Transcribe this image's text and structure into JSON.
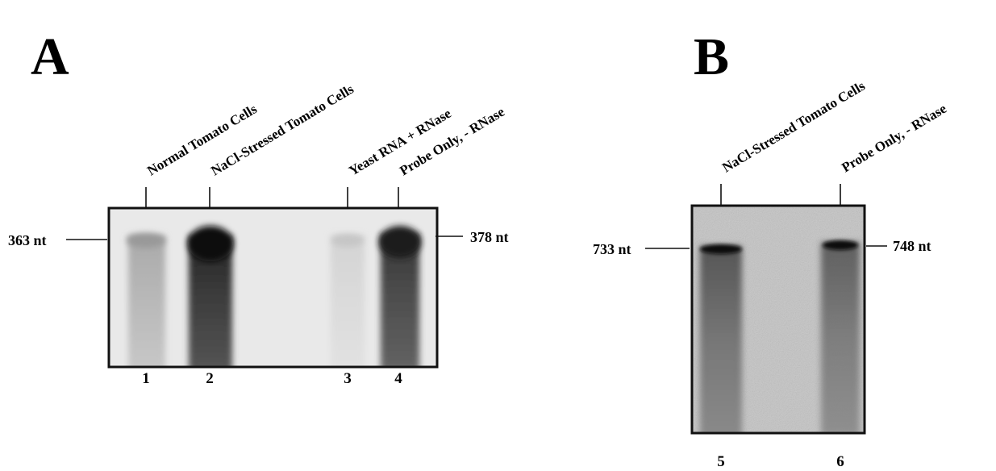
{
  "panels": [
    {
      "label": "A",
      "lanes": [
        {
          "label": "Normal Tomato Cells",
          "number": 1
        },
        {
          "label": "NaCl-Stressed Tomato Cells",
          "number": 2
        },
        {
          "label": "Yeast RNA + RNase",
          "number": 3
        },
        {
          "label": "Probe Only, - RNase",
          "number": 4
        }
      ],
      "markers": [
        {
          "label": "363 nt"
        },
        {
          "label": "378 nt"
        }
      ]
    },
    {
      "label": "B",
      "lanes": [
        {
          "label": "NaCl-Stressed Tomato Cells",
          "number": 5
        },
        {
          "label": "Probe Only, - RNase",
          "number": 6
        }
      ],
      "markers": [
        {
          "label": "733 nt"
        },
        {
          "label": "748 nt"
        }
      ]
    }
  ]
}
